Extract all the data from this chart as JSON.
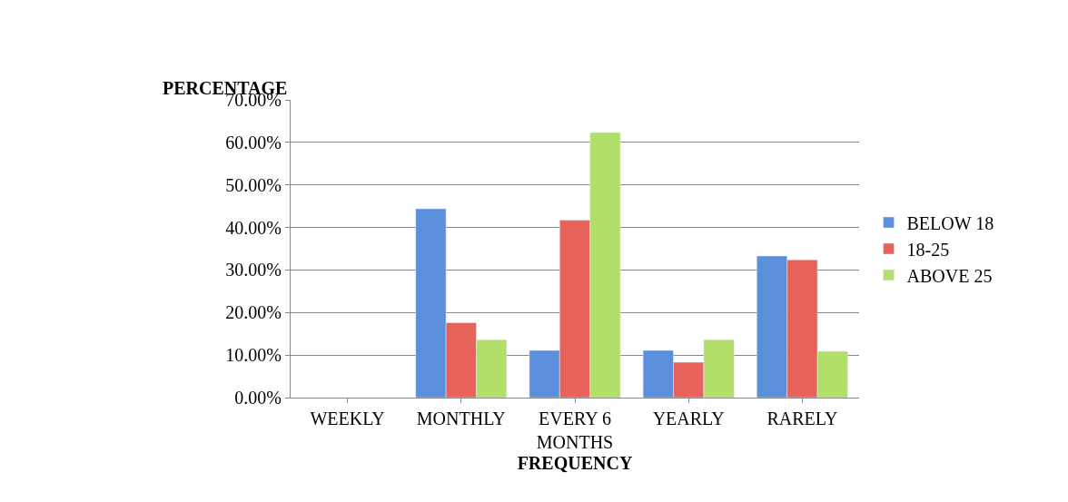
{
  "chart_data": {
    "type": "bar",
    "xlabel": "FREQUENCY",
    "ylabel": "PERCENTAGE",
    "categories": [
      "WEEKLY",
      "MONTHLY",
      "EVERY 6\nMONTHS",
      "YEARLY",
      "RARELY"
    ],
    "series": [
      {
        "name": "BELOW 18",
        "color": "#5b8fdc",
        "values": [
          null,
          44.4,
          11.1,
          11.1,
          33.3
        ]
      },
      {
        "name": "18-25",
        "color": "#e8625c",
        "values": [
          null,
          17.6,
          41.7,
          8.3,
          32.4
        ]
      },
      {
        "name": "ABOVE 25",
        "color": "#b2df6a",
        "values": [
          null,
          13.6,
          62.3,
          13.6,
          10.9
        ]
      }
    ],
    "ylim": [
      0,
      70
    ],
    "yticks": [
      {
        "value": 0,
        "label": "0.00%"
      },
      {
        "value": 10,
        "label": "10.00%"
      },
      {
        "value": 20,
        "label": "20.00%"
      },
      {
        "value": 30,
        "label": "30.00%"
      },
      {
        "value": 40,
        "label": "40.00%"
      },
      {
        "value": 50,
        "label": "50.00%"
      },
      {
        "value": 60,
        "label": "60.00%"
      },
      {
        "value": 70,
        "label": "70.00%"
      }
    ],
    "grid": "y",
    "legend": "right"
  }
}
